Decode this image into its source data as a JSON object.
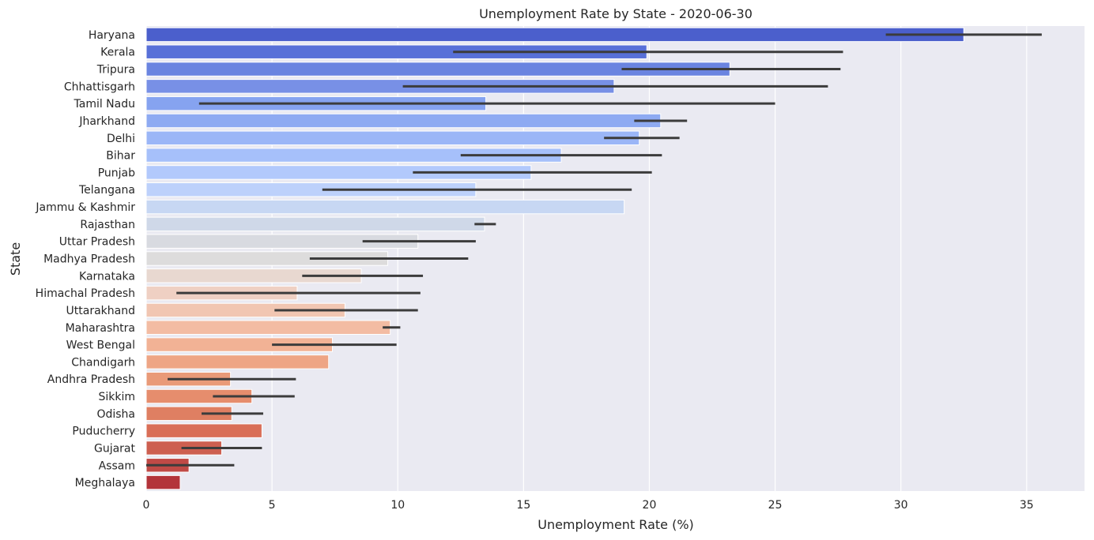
{
  "chart_data": {
    "type": "bar",
    "orientation": "horizontal",
    "title": "Unemployment Rate by State - 2020-06-30",
    "xlabel": "Unemployment Rate (%)",
    "ylabel": "State",
    "xlim": [
      0,
      37.3
    ],
    "xticks": [
      0,
      5,
      10,
      15,
      20,
      25,
      30,
      35
    ],
    "grid": true,
    "categories": [
      "Haryana",
      "Kerala",
      "Tripura",
      "Chhattisgarh",
      "Tamil Nadu",
      "Jharkhand",
      "Delhi",
      "Bihar",
      "Punjab",
      "Telangana",
      "Jammu & Kashmir",
      "Rajasthan",
      "Uttar Pradesh",
      "Madhya Pradesh",
      "Karnataka",
      "Himachal Pradesh",
      "Uttarakhand",
      "Maharashtra",
      "West Bengal",
      "Chandigarh",
      "Andhra Pradesh",
      "Sikkim",
      "Odisha",
      "Puducherry",
      "Gujarat",
      "Assam",
      "Meghalaya"
    ],
    "values": [
      32.5,
      19.9,
      23.2,
      18.6,
      13.5,
      20.45,
      19.6,
      16.5,
      15.3,
      13.1,
      19.0,
      13.45,
      10.8,
      9.6,
      8.55,
      6.0,
      7.9,
      9.7,
      7.4,
      7.25,
      3.35,
      4.2,
      3.4,
      4.6,
      3.0,
      1.7,
      1.35
    ],
    "ci_low": [
      29.4,
      12.2,
      18.9,
      10.2,
      2.1,
      19.4,
      18.2,
      12.5,
      10.6,
      7.0,
      null,
      13.05,
      8.6,
      6.5,
      6.2,
      1.2,
      5.1,
      9.4,
      5.0,
      null,
      0.85,
      2.65,
      2.2,
      null,
      1.4,
      0.0,
      null
    ],
    "ci_high": [
      35.6,
      27.7,
      27.6,
      27.1,
      25.0,
      21.5,
      21.2,
      20.5,
      20.1,
      19.3,
      null,
      13.9,
      13.1,
      12.8,
      11.0,
      10.9,
      10.8,
      10.1,
      9.95,
      null,
      5.95,
      5.9,
      4.65,
      null,
      4.6,
      3.5,
      null
    ],
    "colors": [
      "#4b5fcc",
      "#5870d8",
      "#6a84e0",
      "#7890e6",
      "#86a3f0",
      "#8eaaf2",
      "#9bb6f7",
      "#a6c0fa",
      "#b2c9fc",
      "#bdd1fb",
      "#c7d7f3",
      "#cfd8e8",
      "#d8dae0",
      "#dddcdc",
      "#e8d8d0",
      "#efd0c3",
      "#f1c6b2",
      "#f3bca3",
      "#f2b295",
      "#eea585",
      "#e99a78",
      "#e68d6d",
      "#df7f62",
      "#d96e57",
      "#cd5f50",
      "#c04a46",
      "#b3343a"
    ],
    "ci_color": "#3c3c3c",
    "background": "#eaeaf2",
    "grid_color": "#ffffff"
  }
}
